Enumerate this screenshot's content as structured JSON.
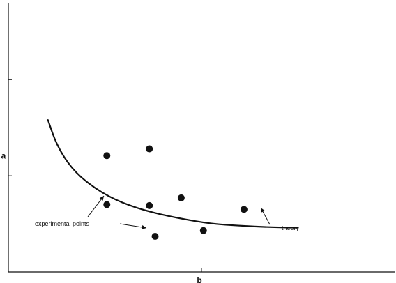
{
  "chart_data": {
    "type": "scatter",
    "xlabel": "b",
    "ylabel": "a",
    "xlim": [
      0,
      4
    ],
    "ylim": [
      0,
      2.8
    ],
    "xticks": [
      1,
      2,
      3
    ],
    "yticks": [
      1,
      2
    ],
    "grid": false,
    "legend": "none",
    "theory_curve": {
      "label": "theory",
      "points": [
        [
          0.41,
          1.58
        ],
        [
          0.5,
          1.32
        ],
        [
          0.65,
          1.08
        ],
        [
          0.85,
          0.9
        ],
        [
          1.1,
          0.75
        ],
        [
          1.4,
          0.64
        ],
        [
          1.75,
          0.56
        ],
        [
          2.1,
          0.5
        ],
        [
          2.4,
          0.48
        ],
        [
          2.7,
          0.465
        ],
        [
          3.0,
          0.46
        ]
      ]
    },
    "experimental_points": {
      "label": "experimental points",
      "points": [
        [
          1.02,
          1.21
        ],
        [
          1.46,
          1.28
        ],
        [
          1.02,
          0.7
        ],
        [
          1.46,
          0.69
        ],
        [
          1.79,
          0.77
        ],
        [
          2.44,
          0.65
        ],
        [
          2.02,
          0.43
        ],
        [
          1.52,
          0.37
        ]
      ]
    },
    "annotations": [
      {
        "text": "experimental points"
      },
      {
        "text": "theory"
      }
    ]
  }
}
